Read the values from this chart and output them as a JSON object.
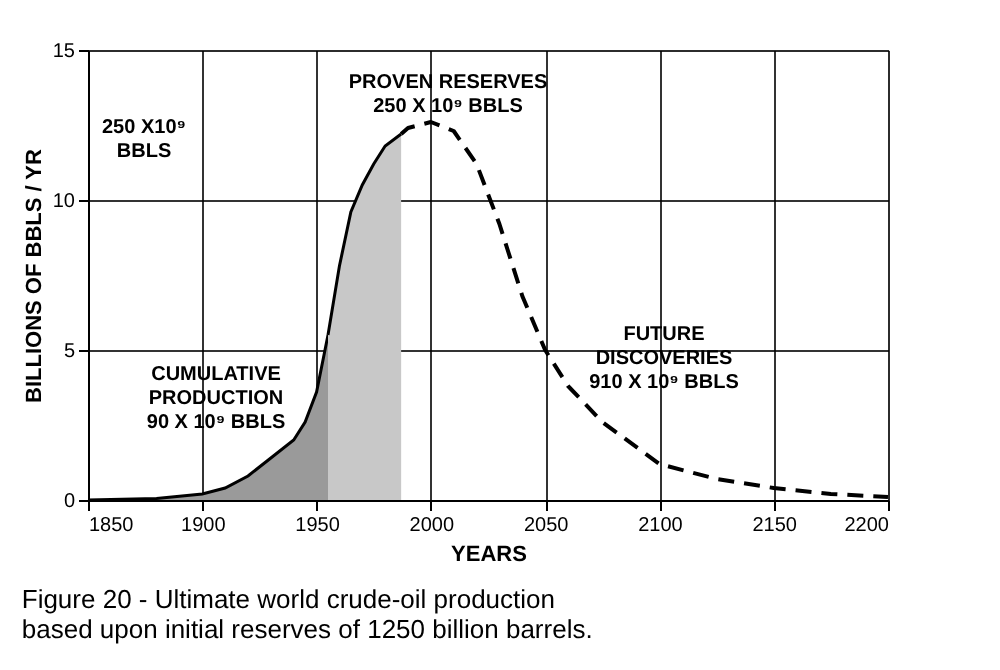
{
  "chart_data": {
    "type": "area",
    "title": "Figure 20 - Ultimate world crude-oil production\nbased upon initial reserves of 1250 billion barrels.",
    "xlabel": "YEARS",
    "ylabel": "BILLIONS OF BBLS / YR",
    "xlim": [
      1850,
      2200
    ],
    "xticks": [
      1850,
      1900,
      1950,
      2000,
      2050,
      2100,
      2150,
      2200
    ],
    "ylim": [
      0,
      15
    ],
    "yticks": [
      0,
      5,
      10,
      15
    ],
    "grid": true,
    "series": [
      {
        "color": "#9a9a9a",
        "x": [
          1850,
          1880,
          1900,
          1910,
          1920,
          1930,
          1940,
          1945,
          1950,
          1955
        ],
        "values": [
          0,
          0.05,
          0.2,
          0.4,
          0.8,
          1.4,
          2.0,
          2.6,
          3.6,
          5.5
        ]
      },
      {
        "color": "#c8c8c8",
        "x": [
          1955,
          1960,
          1965,
          1970,
          1975,
          1980,
          1987
        ],
        "values": [
          5.5,
          7.8,
          9.6,
          10.5,
          11.2,
          11.8,
          12.2
        ]
      },
      {
        "type": "line",
        "line_style": "dashed",
        "color": "#000000",
        "x": [
          1987,
          1990,
          2000,
          2010,
          2020,
          2030,
          2040,
          2050,
          2060,
          2075,
          2100,
          2125,
          2150,
          2175,
          2200
        ],
        "values": [
          12.2,
          12.4,
          12.6,
          12.3,
          11.2,
          9.2,
          6.8,
          5.0,
          3.8,
          2.6,
          1.2,
          0.7,
          0.4,
          0.2,
          0.1
        ]
      }
    ],
    "annotations": [
      "250 X10⁹\nBBLS",
      "PROVEN RESERVES\n250 X 10⁹ BBLS",
      "CUMULATIVE\nPRODUCTION\n90 X 10⁹ BBLS",
      "FUTURE\nDISCOVERIES\n910 X 10⁹ BBLS"
    ]
  }
}
